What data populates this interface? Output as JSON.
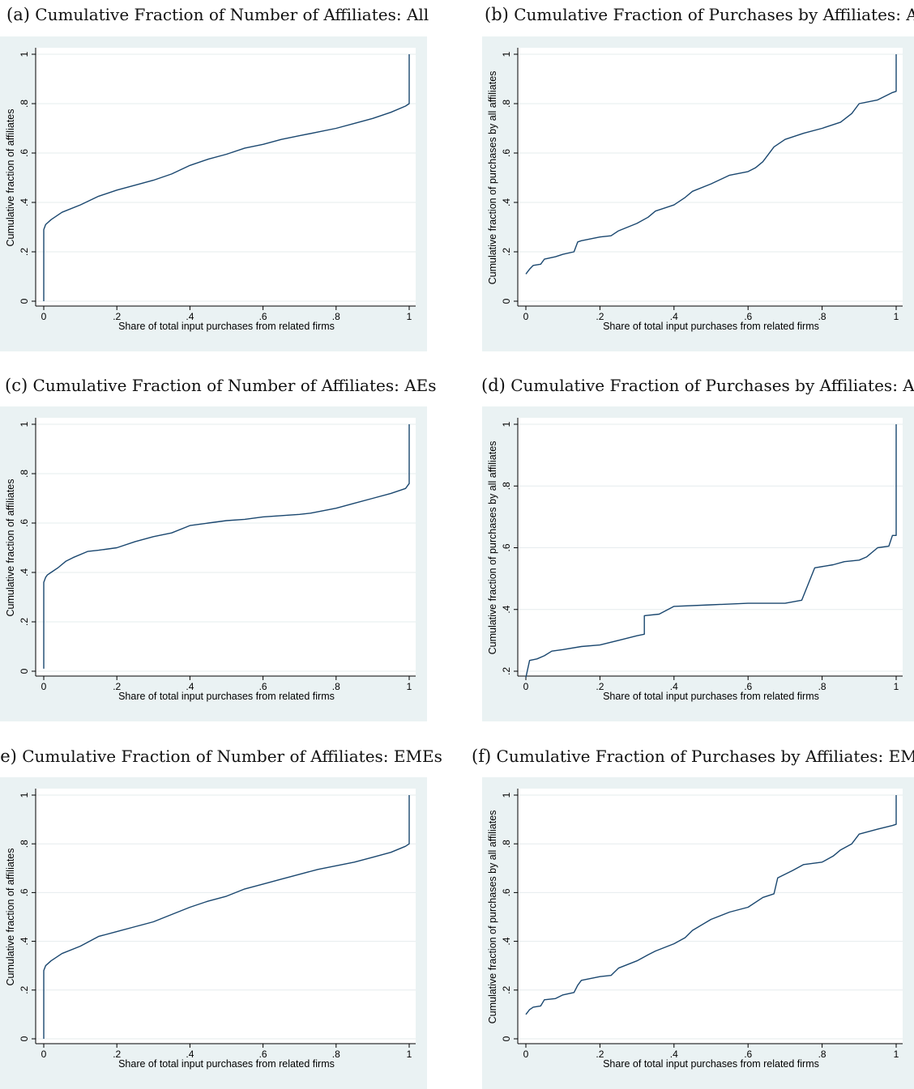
{
  "chart_data": [
    {
      "id": "a",
      "type": "line",
      "panel_label": "(a)",
      "title": "Cumulative Fraction of Number of Affiliates: All",
      "xlabel": "Share of total input purchases from related firms",
      "ylabel": "Cumulative fraction of affiliates",
      "xlim": [
        0,
        1
      ],
      "ylim": [
        0,
        1
      ],
      "xticks": [
        0,
        0.2,
        0.4,
        0.6,
        0.8,
        1
      ],
      "xtick_labels": [
        "0",
        ".2",
        ".4",
        ".6",
        ".8",
        "1"
      ],
      "yticks": [
        0,
        0.2,
        0.4,
        0.6,
        0.8,
        1
      ],
      "ytick_labels": [
        "0",
        ".2",
        ".4",
        ".6",
        ".8",
        "1"
      ],
      "grid": true,
      "line_color": "#1a476f",
      "background": "#eaf2f3",
      "x": [
        0,
        0,
        0.005,
        0.02,
        0.05,
        0.1,
        0.15,
        0.2,
        0.25,
        0.3,
        0.35,
        0.4,
        0.45,
        0.5,
        0.55,
        0.6,
        0.65,
        0.7,
        0.75,
        0.8,
        0.85,
        0.9,
        0.95,
        0.99,
        1,
        1
      ],
      "y": [
        0,
        0.29,
        0.31,
        0.33,
        0.36,
        0.39,
        0.425,
        0.45,
        0.47,
        0.49,
        0.515,
        0.55,
        0.575,
        0.595,
        0.62,
        0.635,
        0.655,
        0.67,
        0.685,
        0.7,
        0.72,
        0.74,
        0.765,
        0.79,
        0.8,
        1
      ]
    },
    {
      "id": "b",
      "type": "line",
      "panel_label": "(b)",
      "title": "Cumulative Fraction of Purchases by Affiliates: All",
      "xlabel": "Share of total input purchases from related firms",
      "ylabel": "Cumulative fraction of purchases by all affiliates",
      "xlim": [
        0,
        1
      ],
      "ylim": [
        0,
        1
      ],
      "xticks": [
        0,
        0.2,
        0.4,
        0.6,
        0.8,
        1
      ],
      "xtick_labels": [
        "0",
        ".2",
        ".4",
        ".6",
        ".8",
        "1"
      ],
      "yticks": [
        0,
        0.2,
        0.4,
        0.6,
        0.8,
        1
      ],
      "ytick_labels": [
        "0",
        ".2",
        ".4",
        ".6",
        ".8",
        "1"
      ],
      "grid": true,
      "line_color": "#1a476f",
      "background": "#eaf2f3",
      "x": [
        0,
        0.01,
        0.02,
        0.04,
        0.05,
        0.08,
        0.1,
        0.13,
        0.14,
        0.15,
        0.2,
        0.23,
        0.25,
        0.3,
        0.33,
        0.35,
        0.4,
        0.43,
        0.45,
        0.5,
        0.55,
        0.6,
        0.62,
        0.64,
        0.67,
        0.7,
        0.75,
        0.8,
        0.85,
        0.88,
        0.9,
        0.95,
        0.99,
        1,
        1
      ],
      "y": [
        0.11,
        0.13,
        0.145,
        0.15,
        0.17,
        0.18,
        0.19,
        0.2,
        0.24,
        0.245,
        0.26,
        0.265,
        0.285,
        0.315,
        0.34,
        0.365,
        0.39,
        0.42,
        0.445,
        0.475,
        0.51,
        0.525,
        0.54,
        0.565,
        0.625,
        0.655,
        0.68,
        0.7,
        0.725,
        0.76,
        0.8,
        0.815,
        0.845,
        0.85,
        1
      ]
    },
    {
      "id": "c",
      "type": "line",
      "panel_label": "(c)",
      "title": "Cumulative Fraction of Number of Affiliates: AEs",
      "xlabel": "Share of total input purchases from related firms",
      "ylabel": "Cumulative fraction of affiliates",
      "xlim": [
        0,
        1
      ],
      "ylim": [
        0,
        1
      ],
      "xticks": [
        0,
        0.2,
        0.4,
        0.6,
        0.8,
        1
      ],
      "xtick_labels": [
        "0",
        ".2",
        ".4",
        ".6",
        ".8",
        "1"
      ],
      "yticks": [
        0,
        0.2,
        0.4,
        0.6,
        0.8,
        1
      ],
      "ytick_labels": [
        "0",
        ".2",
        ".4",
        ".6",
        ".8",
        "1"
      ],
      "grid": true,
      "line_color": "#1a476f",
      "background": "#eaf2f3",
      "x": [
        0,
        0,
        0.005,
        0.01,
        0.02,
        0.04,
        0.06,
        0.08,
        0.12,
        0.15,
        0.2,
        0.25,
        0.3,
        0.35,
        0.4,
        0.45,
        0.5,
        0.55,
        0.6,
        0.7,
        0.73,
        0.8,
        0.85,
        0.9,
        0.95,
        0.99,
        1,
        1
      ],
      "y": [
        0.01,
        0.36,
        0.38,
        0.39,
        0.4,
        0.42,
        0.445,
        0.46,
        0.485,
        0.49,
        0.5,
        0.525,
        0.545,
        0.56,
        0.59,
        0.6,
        0.61,
        0.615,
        0.625,
        0.635,
        0.64,
        0.66,
        0.68,
        0.7,
        0.72,
        0.74,
        0.76,
        1
      ]
    },
    {
      "id": "d",
      "type": "line",
      "panel_label": "(d)",
      "title": "Cumulative Fraction of Purchases by Affiliates: AEs",
      "xlabel": "Share of total input purchases from related firms",
      "ylabel": "Cumulative fraction of purchases by all affiliates",
      "xlim": [
        0,
        1
      ],
      "ylim": [
        0.2,
        1
      ],
      "xticks": [
        0,
        0.2,
        0.4,
        0.6,
        0.8,
        1
      ],
      "xtick_labels": [
        "0",
        ".2",
        ".4",
        ".6",
        ".8",
        "1"
      ],
      "yticks": [
        0.2,
        0.4,
        0.6,
        0.8,
        1
      ],
      "ytick_labels": [
        ".2",
        ".4",
        ".6",
        ".8",
        "1"
      ],
      "grid": true,
      "line_color": "#1a476f",
      "background": "#eaf2f3",
      "x": [
        0,
        0.01,
        0.03,
        0.05,
        0.07,
        0.1,
        0.15,
        0.2,
        0.25,
        0.3,
        0.32,
        0.32,
        0.36,
        0.4,
        0.5,
        0.6,
        0.7,
        0.745,
        0.78,
        0.83,
        0.86,
        0.9,
        0.92,
        0.95,
        0.98,
        0.99,
        1,
        1
      ],
      "y": [
        0.18,
        0.235,
        0.24,
        0.25,
        0.265,
        0.27,
        0.28,
        0.285,
        0.3,
        0.315,
        0.32,
        0.38,
        0.385,
        0.41,
        0.415,
        0.42,
        0.42,
        0.43,
        0.535,
        0.545,
        0.555,
        0.56,
        0.57,
        0.6,
        0.605,
        0.64,
        0.64,
        1
      ]
    },
    {
      "id": "e",
      "type": "line",
      "panel_label": "(e)",
      "title": "Cumulative Fraction of Number of Affiliates: EMEs",
      "xlabel": "Share of total input purchases from related firms",
      "ylabel": "Cumulative fraction of affiliates",
      "xlim": [
        0,
        1
      ],
      "ylim": [
        0,
        1
      ],
      "xticks": [
        0,
        0.2,
        0.4,
        0.6,
        0.8,
        1
      ],
      "xtick_labels": [
        "0",
        ".2",
        ".4",
        ".6",
        ".8",
        "1"
      ],
      "yticks": [
        0,
        0.2,
        0.4,
        0.6,
        0.8,
        1
      ],
      "ytick_labels": [
        "0",
        ".2",
        ".4",
        ".6",
        ".8",
        "1"
      ],
      "grid": true,
      "line_color": "#1a476f",
      "background": "#eaf2f3",
      "x": [
        0,
        0,
        0.005,
        0.02,
        0.05,
        0.1,
        0.15,
        0.2,
        0.25,
        0.3,
        0.35,
        0.4,
        0.45,
        0.5,
        0.55,
        0.6,
        0.65,
        0.7,
        0.75,
        0.8,
        0.85,
        0.9,
        0.95,
        0.99,
        1,
        1
      ],
      "y": [
        0,
        0.28,
        0.3,
        0.32,
        0.35,
        0.38,
        0.42,
        0.44,
        0.46,
        0.48,
        0.51,
        0.54,
        0.565,
        0.585,
        0.615,
        0.635,
        0.655,
        0.675,
        0.695,
        0.71,
        0.725,
        0.745,
        0.765,
        0.79,
        0.8,
        1
      ]
    },
    {
      "id": "f",
      "type": "line",
      "panel_label": "(f)",
      "title": "Cumulative Fraction of Purchases by Affiliates: EMEs",
      "xlabel": "Share of total input purchases from related firms",
      "ylabel": "Cumulative fraction of purchases by all affiliates",
      "xlim": [
        0,
        1
      ],
      "ylim": [
        0,
        1
      ],
      "xticks": [
        0,
        0.2,
        0.4,
        0.6,
        0.8,
        1
      ],
      "xtick_labels": [
        "0",
        ".2",
        ".4",
        ".6",
        ".8",
        "1"
      ],
      "yticks": [
        0,
        0.2,
        0.4,
        0.6,
        0.8,
        1
      ],
      "ytick_labels": [
        "0",
        ".2",
        ".4",
        ".6",
        ".8",
        "1"
      ],
      "grid": true,
      "line_color": "#1a476f",
      "background": "#eaf2f3",
      "x": [
        0,
        0.01,
        0.02,
        0.04,
        0.05,
        0.08,
        0.1,
        0.13,
        0.14,
        0.15,
        0.2,
        0.23,
        0.25,
        0.3,
        0.33,
        0.35,
        0.4,
        0.43,
        0.45,
        0.5,
        0.55,
        0.6,
        0.64,
        0.67,
        0.68,
        0.72,
        0.75,
        0.8,
        0.83,
        0.85,
        0.88,
        0.9,
        0.95,
        0.99,
        1,
        1
      ],
      "y": [
        0.1,
        0.12,
        0.13,
        0.135,
        0.16,
        0.165,
        0.18,
        0.19,
        0.22,
        0.24,
        0.255,
        0.26,
        0.29,
        0.32,
        0.345,
        0.36,
        0.39,
        0.415,
        0.445,
        0.49,
        0.52,
        0.54,
        0.58,
        0.595,
        0.66,
        0.69,
        0.715,
        0.725,
        0.75,
        0.775,
        0.8,
        0.84,
        0.86,
        0.875,
        0.88,
        1
      ]
    }
  ]
}
